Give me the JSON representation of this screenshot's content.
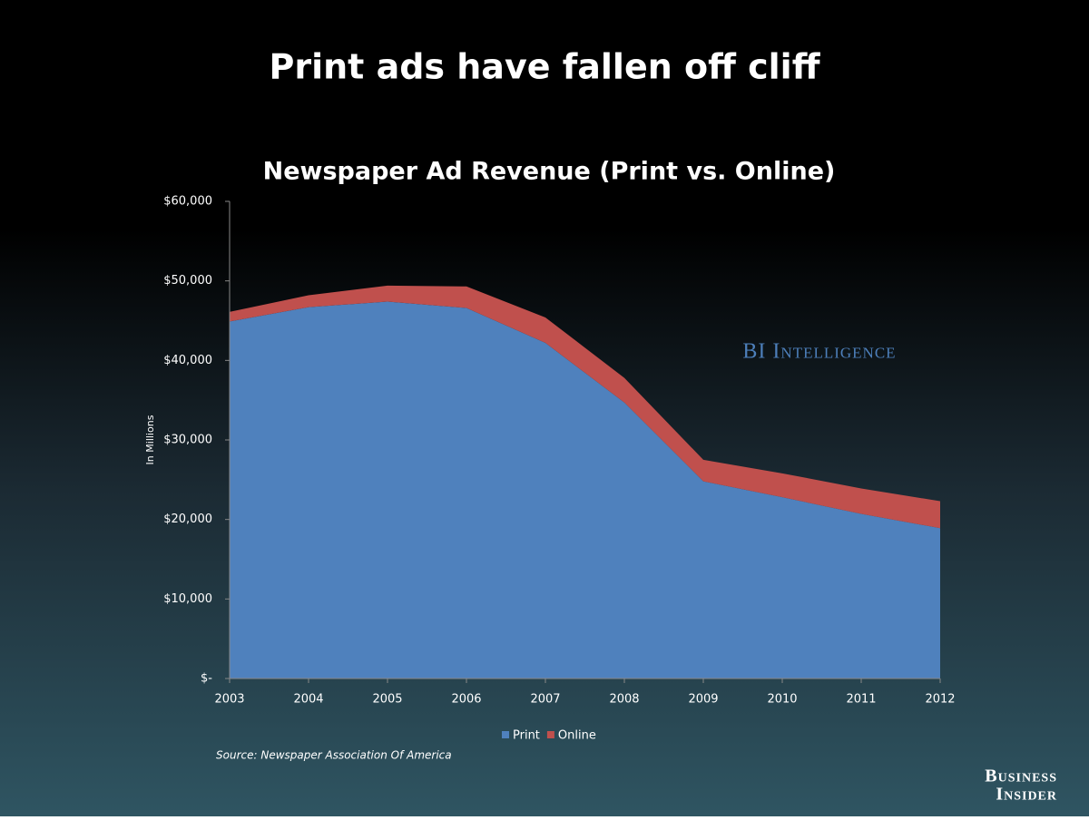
{
  "chart_data": {
    "type": "stacked-area",
    "slide_title": "Print ads have fallen off cliff",
    "title": "Newspaper Ad Revenue (Print vs. Online)",
    "ylabel": "In Millions",
    "categories": [
      "2003",
      "2004",
      "2005",
      "2006",
      "2007",
      "2008",
      "2009",
      "2010",
      "2011",
      "2012"
    ],
    "series": [
      {
        "name": "Print",
        "color": "#4f81bd",
        "values": [
          44900,
          46700,
          47400,
          46600,
          42200,
          34700,
          24800,
          22800,
          20700,
          18900
        ]
      },
      {
        "name": "Online",
        "color": "#c0504d",
        "values": [
          1200,
          1500,
          2000,
          2700,
          3200,
          3100,
          2700,
          3000,
          3200,
          3400
        ]
      }
    ],
    "ylim": [
      0,
      60000
    ],
    "yticks": [
      {
        "value": 0,
        "label": "$-"
      },
      {
        "value": 10000,
        "label": "$10,000"
      },
      {
        "value": 20000,
        "label": "$20,000"
      },
      {
        "value": 30000,
        "label": "$30,000"
      },
      {
        "value": 40000,
        "label": "$40,000"
      },
      {
        "value": 50000,
        "label": "$50,000"
      },
      {
        "value": 60000,
        "label": "$60,000"
      }
    ],
    "legend": "bottom",
    "source": "Source: Newspaper Association Of America",
    "watermark": "BI Intelligence",
    "brand": [
      "Business",
      "Insider"
    ]
  }
}
